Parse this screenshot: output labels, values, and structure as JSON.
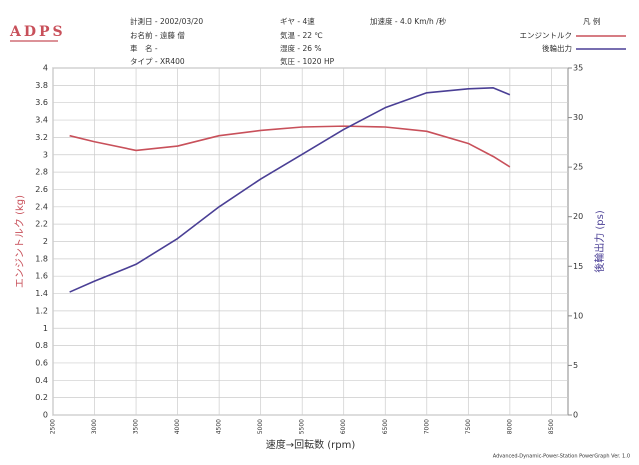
{
  "brand": "ADPS",
  "header": [
    "計測日 - 2002/03/20",
    "お名前 - 遠藤 僧",
    "車　名 -",
    "タイプ - XR400",
    "ギヤ - 4速",
    "気温 - 22 ℃",
    "湿度 - 26 %",
    "気圧 - 1020 HP",
    "加速度 - 4.0 Km/h /秒"
  ],
  "legend_title": "凡 例",
  "footer": "Advanced-Dynamic-Power-Station PowerGraph Ver. 1.0",
  "chart_data": {
    "type": "line",
    "x_label": "速度→回転数 (rpm)",
    "y_label": "エンジントルク (kg)",
    "y2_label": "後輪出力 (ps)",
    "x": [
      2700,
      3000,
      3500,
      4000,
      4500,
      5000,
      5500,
      6000,
      6500,
      7000,
      7500,
      7800,
      8000
    ],
    "series": [
      {
        "name": "エンジントルク",
        "color": "#c8505a",
        "values": [
          3.22,
          3.15,
          3.05,
          3.1,
          3.22,
          3.28,
          3.32,
          3.33,
          3.32,
          3.27,
          3.13,
          2.98,
          2.86
        ]
      },
      {
        "name": "後輪出力",
        "color": "#4a3f95",
        "axis": "y2",
        "values": [
          12.4,
          13.5,
          15.2,
          17.8,
          21.0,
          23.8,
          26.3,
          28.8,
          31.0,
          32.5,
          32.9,
          33.0,
          32.3
        ]
      }
    ],
    "xlim": [
      2500,
      8700
    ],
    "xticks": [
      2500,
      3000,
      3500,
      4000,
      4500,
      5000,
      5500,
      6000,
      6500,
      7000,
      7500,
      8000,
      8500
    ],
    "ylim": [
      0,
      4
    ],
    "yticks": [
      0,
      0.2,
      0.4,
      0.6,
      0.8,
      1,
      1.2,
      1.4,
      1.6,
      1.8,
      2,
      2.2,
      2.4,
      2.6,
      2.8,
      3,
      3.2,
      3.4,
      3.6,
      3.8,
      4
    ],
    "y2lim": [
      0,
      35
    ],
    "y2ticks": [
      0,
      5,
      10,
      15,
      20,
      25,
      30,
      35
    ],
    "grid": true
  }
}
